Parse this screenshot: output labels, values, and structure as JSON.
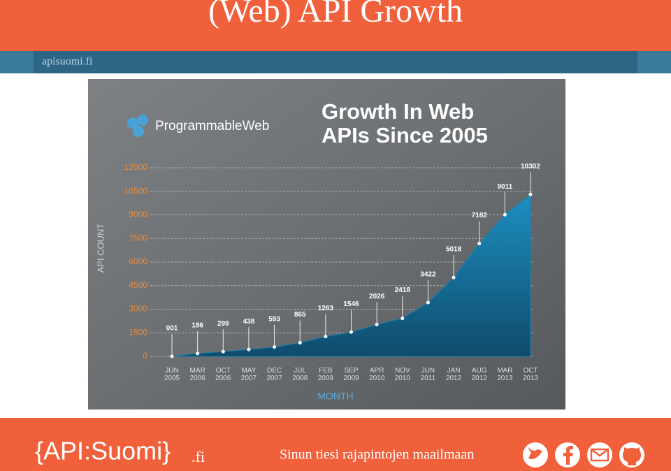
{
  "header": {
    "title": "(Web) API Growth",
    "site": "apisuomi.fi"
  },
  "chart_data": {
    "type": "area",
    "logo": "ProgrammableWeb",
    "title": [
      "Growth In Web",
      "APIs Since 2005"
    ],
    "x_label": "MONTH",
    "y_label": "API COUNT",
    "categories": [
      "JUN 2005",
      "MAR 2006",
      "OCT 2006",
      "MAY 2007",
      "DEC 2007",
      "JUL 2008",
      "FEB 2009",
      "SEP 2009",
      "APR 2010",
      "NOV 2010",
      "JUN 2011",
      "JAN 2012",
      "AUG 2012",
      "MAR 2013",
      "OCT 2013"
    ],
    "values": [
      1,
      186,
      299,
      438,
      593,
      865,
      1263,
      1546,
      2026,
      2418,
      3422,
      5018,
      7182,
      9011,
      10302
    ],
    "value_labels": [
      "001",
      "186",
      "299",
      "438",
      "593",
      "865",
      "1263",
      "1546",
      "2026",
      "2418",
      "3422",
      "5018",
      "7182",
      "9011",
      "10302"
    ],
    "color": "#1a7fae",
    "ylim": [
      0,
      12000
    ],
    "yticks": [
      0,
      1500,
      3000,
      4500,
      6000,
      7500,
      9000,
      10500,
      12000
    ],
    "grid": true
  },
  "footer": {
    "brand": "{API:Suomi}",
    "brand_suffix": ".fi",
    "tagline": "Sinun tiesi rajapintojen maailmaan"
  }
}
